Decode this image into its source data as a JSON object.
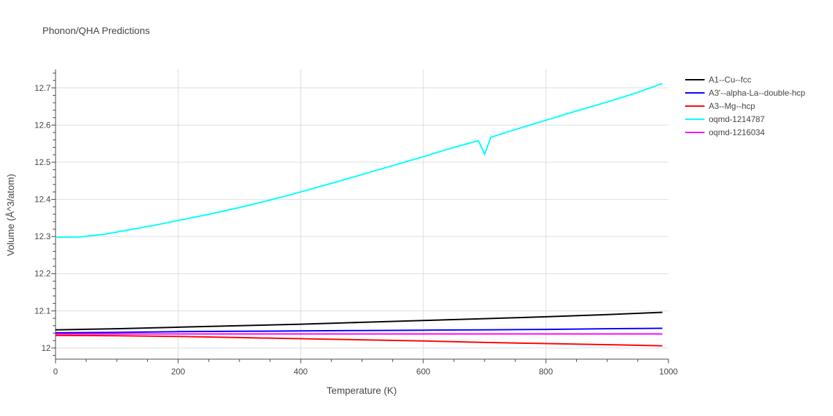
{
  "chart_data": {
    "type": "line",
    "title": "Phonon/QHA Predictions",
    "xlabel": "Temperature (K)",
    "ylabel": "Volume (Å^3/atom)",
    "xlim": [
      0,
      1000
    ],
    "ylim": [
      11.97,
      12.75
    ],
    "x_ticks": [
      "0",
      "200",
      "400",
      "600",
      "800",
      "1000"
    ],
    "y_ticks": [
      "12",
      "12.1",
      "12.2",
      "12.3",
      "12.4",
      "12.5",
      "12.6",
      "12.7"
    ],
    "grid": true,
    "legend_position": "top-right",
    "series": [
      {
        "name": "A1--Cu--fcc",
        "color": "#000000",
        "x": [
          0,
          70,
          100,
          200,
          300,
          400,
          500,
          600,
          700,
          800,
          900,
          990
        ],
        "y": [
          12.049,
          12.051,
          12.052,
          12.056,
          12.06,
          12.064,
          12.069,
          12.074,
          12.079,
          12.084,
          12.09,
          12.096
        ]
      },
      {
        "name": "A3'--alpha-La--double-hcp",
        "color": "#0000ff",
        "x": [
          0,
          100,
          200,
          300,
          400,
          500,
          600,
          700,
          800,
          900,
          990
        ],
        "y": [
          12.041,
          12.042,
          12.044,
          12.045,
          12.046,
          12.047,
          12.048,
          12.049,
          12.05,
          12.052,
          12.053
        ]
      },
      {
        "name": "A3--Mg--hcp",
        "color": "#ff0000",
        "x": [
          0,
          100,
          200,
          300,
          400,
          500,
          600,
          700,
          800,
          900,
          990
        ],
        "y": [
          12.034,
          12.033,
          12.031,
          12.028,
          12.025,
          12.022,
          12.019,
          12.015,
          12.012,
          12.009,
          12.006
        ]
      },
      {
        "name": "oqmd-1214787",
        "color": "#00ffff",
        "x": [
          0,
          40,
          80,
          120,
          160,
          200,
          250,
          300,
          350,
          400,
          450,
          500,
          550,
          600,
          650,
          690,
          700,
          710,
          750,
          800,
          850,
          900,
          950,
          990
        ],
        "y": [
          12.298,
          12.299,
          12.306,
          12.318,
          12.33,
          12.343,
          12.36,
          12.378,
          12.398,
          12.42,
          12.443,
          12.467,
          12.491,
          12.515,
          12.54,
          12.558,
          12.521,
          12.567,
          12.588,
          12.613,
          12.638,
          12.662,
          12.688,
          12.712
        ]
      },
      {
        "name": "oqmd-1216034",
        "color": "#ff00ff",
        "x": [
          0,
          200,
          400,
          600,
          800,
          990
        ],
        "y": [
          12.038,
          12.038,
          12.038,
          12.038,
          12.038,
          12.038
        ]
      }
    ]
  }
}
